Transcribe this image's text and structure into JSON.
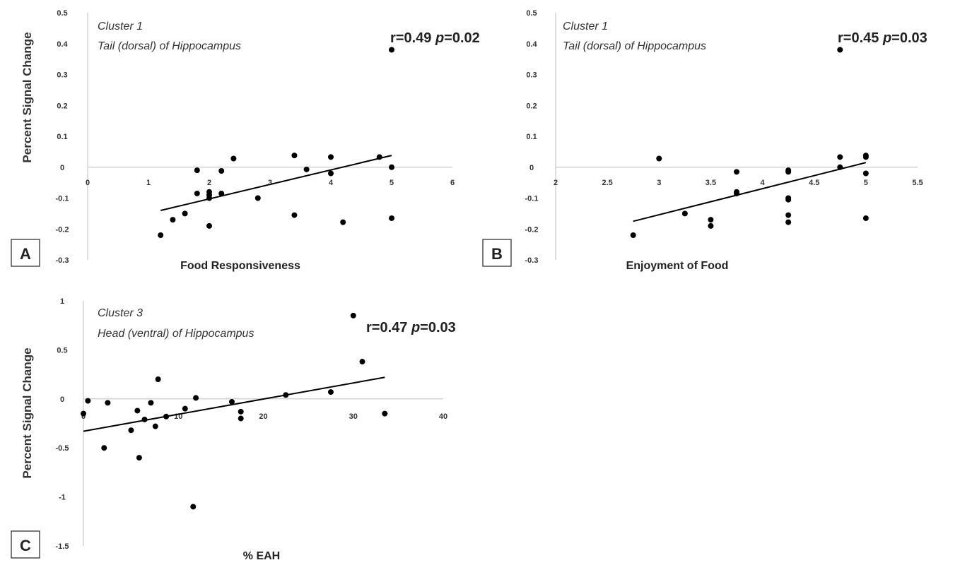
{
  "chart_data": [
    {
      "type": "scatter",
      "panel_label": "A",
      "ylabel": "Percent Signal Change",
      "xlabel": "Food Responsiveness",
      "annotation_lines": [
        "Cluster 1",
        "Tail (dorsal) of Hippocampus"
      ],
      "stat_r": "r=0.49 ",
      "stat_p": "p",
      "stat_val": "=0.02",
      "xlim": [
        0,
        6
      ],
      "ylim": [
        -0.3,
        0.5
      ],
      "xticks": [
        "0",
        "1",
        "2",
        "3",
        "4",
        "5",
        "6"
      ],
      "yticks": [
        "0.5",
        "0.4",
        "0.3",
        "0.2",
        "0.1",
        "0",
        "-0.1",
        "-0.2",
        "-0.3"
      ],
      "points": [
        [
          1.2,
          -0.22
        ],
        [
          1.4,
          -0.17
        ],
        [
          1.6,
          -0.15
        ],
        [
          1.8,
          -0.085
        ],
        [
          1.8,
          -0.01
        ],
        [
          2.0,
          -0.08
        ],
        [
          2.0,
          -0.1
        ],
        [
          2.0,
          -0.19
        ],
        [
          2.0,
          -0.09
        ],
        [
          2.2,
          -0.085
        ],
        [
          2.2,
          -0.012
        ],
        [
          2.4,
          0.028
        ],
        [
          2.8,
          -0.1
        ],
        [
          3.4,
          0.038
        ],
        [
          3.4,
          -0.155
        ],
        [
          3.6,
          -0.007
        ],
        [
          4.0,
          0.033
        ],
        [
          4.0,
          -0.02
        ],
        [
          4.2,
          -0.178
        ],
        [
          4.8,
          0.033
        ],
        [
          5.0,
          0.38
        ],
        [
          5.0,
          0.0
        ],
        [
          5.0,
          -0.165
        ]
      ],
      "trendline": [
        [
          1.2,
          -0.14
        ],
        [
          5.0,
          0.038
        ]
      ]
    },
    {
      "type": "scatter",
      "panel_label": "B",
      "ylabel": "",
      "xlabel": "Enjoyment of Food",
      "annotation_lines": [
        "Cluster 1",
        "Tail (dorsal) of Hippocampus"
      ],
      "stat_r": "r=0.45 ",
      "stat_p": "p",
      "stat_val": "=0.03",
      "xlim": [
        2,
        5.5
      ],
      "ylim": [
        -0.3,
        0.5
      ],
      "xticks": [
        "2",
        "2.5",
        "3",
        "3.5",
        "4",
        "4.5",
        "5",
        "5.5"
      ],
      "yticks": [
        "0.5",
        "0.4",
        "0.3",
        "0.2",
        "0.1",
        "0",
        "-0.1",
        "-0.2",
        "-0.3"
      ],
      "points": [
        [
          2.75,
          -0.22
        ],
        [
          3.0,
          0.028
        ],
        [
          3.25,
          -0.15
        ],
        [
          3.5,
          -0.17
        ],
        [
          3.5,
          -0.19
        ],
        [
          3.75,
          -0.015
        ],
        [
          3.75,
          -0.085
        ],
        [
          3.75,
          -0.08
        ],
        [
          4.25,
          -0.01
        ],
        [
          4.25,
          -0.015
        ],
        [
          4.25,
          -0.1
        ],
        [
          4.25,
          -0.105
        ],
        [
          4.25,
          -0.155
        ],
        [
          4.25,
          -0.178
        ],
        [
          4.75,
          0.38
        ],
        [
          4.75,
          0.033
        ],
        [
          4.75,
          0.0
        ],
        [
          5.0,
          0.033
        ],
        [
          5.0,
          0.038
        ],
        [
          5.0,
          -0.02
        ],
        [
          5.0,
          -0.165
        ]
      ],
      "trendline": [
        [
          2.75,
          -0.175
        ],
        [
          5.0,
          0.015
        ]
      ]
    },
    {
      "type": "scatter",
      "panel_label": "C",
      "ylabel": "Percent Signal Change",
      "xlabel": "% EAH",
      "annotation_lines": [
        "Cluster 3",
        "Head (ventral) of Hippocampus"
      ],
      "stat_r": "r=0.47 ",
      "stat_p": "p",
      "stat_val": "=0.03",
      "xlim": [
        0,
        40
      ],
      "ylim": [
        -1.5,
        1
      ],
      "xticks": [
        "0",
        "10",
        "20",
        "30",
        "40"
      ],
      "yticks": [
        "1",
        "0.5",
        "0",
        "-0.5",
        "-1",
        "-1.5"
      ],
      "points": [
        [
          0,
          -0.15
        ],
        [
          0.5,
          -0.02
        ],
        [
          2.3,
          -0.5
        ],
        [
          2.7,
          -0.04
        ],
        [
          5.3,
          -0.32
        ],
        [
          6.0,
          -0.12
        ],
        [
          6.2,
          -0.6
        ],
        [
          6.8,
          -0.21
        ],
        [
          7.5,
          -0.04
        ],
        [
          8.0,
          -0.28
        ],
        [
          8.3,
          0.2
        ],
        [
          9.2,
          -0.18
        ],
        [
          11.3,
          -0.1
        ],
        [
          12.2,
          -1.1
        ],
        [
          12.5,
          0.01
        ],
        [
          16.5,
          -0.03
        ],
        [
          17.5,
          -0.13
        ],
        [
          17.5,
          -0.2
        ],
        [
          22.5,
          0.04
        ],
        [
          27.5,
          0.07
        ],
        [
          30.0,
          0.85
        ],
        [
          31.0,
          0.38
        ],
        [
          33.5,
          -0.15
        ]
      ],
      "trendline": [
        [
          0,
          -0.33
        ],
        [
          33.5,
          0.22
        ]
      ]
    }
  ]
}
